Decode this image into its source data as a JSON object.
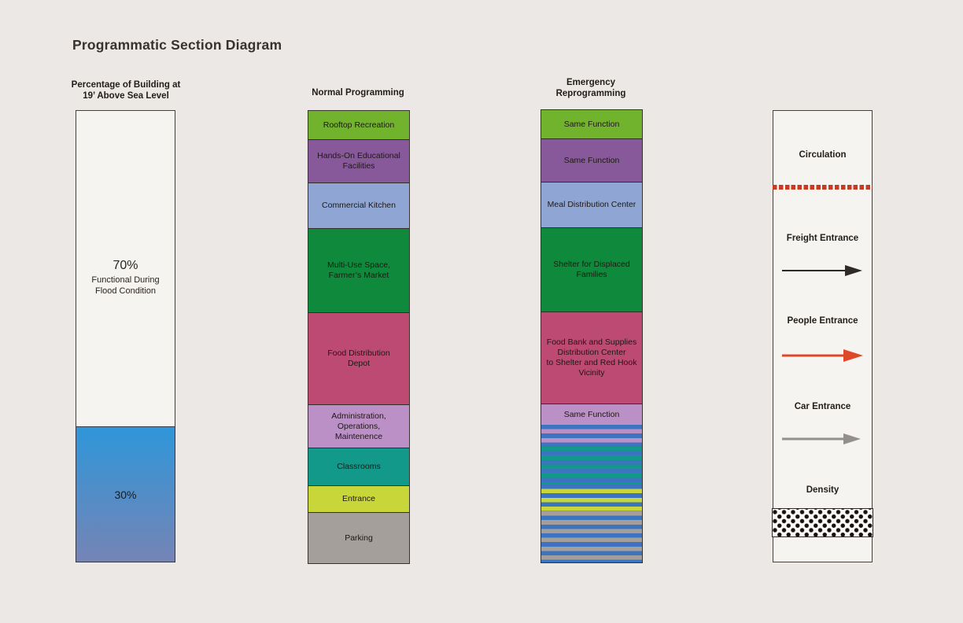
{
  "title": "Programmatic Section Diagram",
  "background_color": "#ebe8e5",
  "columns": {
    "percentage": {
      "header": "Percentage of Building at\n19’ Above Sea Level",
      "upper_value": "70%",
      "upper_caption": "Functional During\nFlood Condition",
      "lower_value": "30%",
      "upper_percent": 70,
      "lower_percent": 30,
      "fill_top_color": "#2f96d9",
      "fill_bottom_color": "#7584b5"
    },
    "normal": {
      "header": "Normal Programming",
      "segments": [
        {
          "label": "Rooftop Recreation",
          "color": "#72b32e",
          "height": 36
        },
        {
          "label": "Hands-On Educational\nFacilities",
          "color": "#87599a",
          "height": 55
        },
        {
          "label": "Commercial Kitchen",
          "color": "#8fa6d4",
          "height": 58
        },
        {
          "label": "Multi-Use Space,\nFarmer’s Market",
          "color": "#0f8a3c",
          "height": 107
        },
        {
          "label": "Food Distribution\nDepot",
          "color": "#bc4a72",
          "height": 117
        },
        {
          "label": "Administration,\nOperations,\nMaintenence",
          "color": "#bb90c6",
          "height": 55
        },
        {
          "label": "Classrooms",
          "color": "#12998a",
          "height": 48
        },
        {
          "label": "Entrance",
          "color": "#c9d63a",
          "height": 34
        },
        {
          "label": "Parking",
          "color": "#a59f9b",
          "height": 65
        }
      ]
    },
    "emergency": {
      "header": "Emergency\nReprogramming",
      "flood_stripe_color": "#3d74bf",
      "segments": [
        {
          "label": "Same Function",
          "color": "#72b32e",
          "height": 36
        },
        {
          "label": "Same Function",
          "color": "#87599a",
          "height": 55
        },
        {
          "label": "Meal Distribution Center",
          "color": "#8fa6d4",
          "height": 58
        },
        {
          "label": "Shelter for Displaced\nFamilies",
          "color": "#0f8a3c",
          "height": 107
        },
        {
          "label": "Food Bank and Supplies\nDistribution Center\nto Shelter and Red Hook\nVicinity",
          "color": "#bc4a72",
          "height": 117
        },
        {
          "label": "Same Function",
          "color": "#bb90c6",
          "height": 27
        },
        {
          "label": "",
          "color": "#bb90c6",
          "height": 28,
          "striped": true,
          "first": "stripe"
        },
        {
          "label": "",
          "color": "#12998a",
          "height": 48,
          "striped": true,
          "first": "base"
        },
        {
          "label": "",
          "color": "#c9d63a",
          "height": 34,
          "striped": true,
          "first": "stripe"
        },
        {
          "label": "",
          "color": "#a59f9b",
          "height": 65,
          "striped": true,
          "first": "base"
        }
      ]
    },
    "legend": {
      "items": [
        {
          "label": "Circulation",
          "type": "dotted-line",
          "color": "#ca3a21"
        },
        {
          "label": "Freight Entrance",
          "type": "arrow",
          "color": "#2e2a27"
        },
        {
          "label": "People Entrance",
          "type": "arrow",
          "color": "#df4729"
        },
        {
          "label": "Car Entrance",
          "type": "arrow",
          "color": "#938f8c"
        },
        {
          "label": "Density",
          "type": "dot-pattern",
          "color": "#17120e"
        }
      ]
    }
  }
}
